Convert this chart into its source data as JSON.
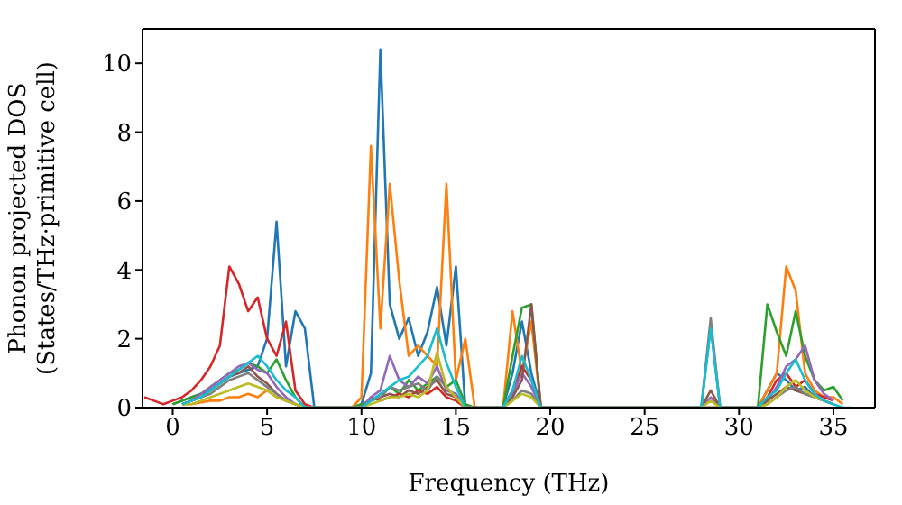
{
  "chart_data": {
    "type": "line",
    "xlabel": "Frequency (THz)",
    "ylabel": "Phonon projected DOS\n(States/THz·primitive cell)",
    "xlim": [
      -1.6,
      37.2
    ],
    "ylim": [
      0,
      11
    ],
    "xticks": [
      0,
      5,
      10,
      15,
      20,
      25,
      30,
      35
    ],
    "yticks": [
      0,
      2,
      4,
      6,
      8,
      10
    ],
    "grid": false,
    "legend": false,
    "marker": "none",
    "line_style": "solid",
    "x": [
      -1.5,
      -1,
      -0.5,
      0,
      0.5,
      1,
      1.5,
      2,
      2.5,
      3,
      3.5,
      4,
      4.5,
      5,
      5.5,
      6,
      6.5,
      7,
      7.5,
      8,
      8.5,
      9,
      9.5,
      10,
      10.5,
      11,
      11.5,
      12,
      12.5,
      13,
      13.5,
      14,
      14.5,
      15,
      15.5,
      16,
      16.5,
      17,
      17.5,
      18,
      18.5,
      19,
      19.5,
      20,
      20.5,
      21,
      21.5,
      22,
      22.5,
      23,
      23.5,
      24,
      24.5,
      25,
      25.5,
      26,
      26.5,
      27,
      27.5,
      28,
      28.5,
      29,
      29.5,
      30,
      30.5,
      31,
      31.5,
      32,
      32.5,
      33,
      33.5,
      34,
      34.5,
      35,
      35.5,
      36
    ],
    "series": [
      {
        "color": "#1f77b4",
        "values": [
          null,
          null,
          null,
          0.1,
          0.2,
          0.3,
          0.4,
          0.5,
          0.7,
          0.9,
          1.0,
          1.1,
          1.2,
          2.0,
          5.4,
          1.2,
          2.8,
          2.3,
          0,
          0,
          0,
          0,
          0,
          0.1,
          1.0,
          10.4,
          3.0,
          2.0,
          2.6,
          1.5,
          2.2,
          3.5,
          1.8,
          4.1,
          0,
          0,
          0,
          0,
          0,
          1.0,
          2.5,
          1.0,
          0,
          0,
          0,
          0,
          0,
          0,
          0,
          0,
          0,
          0,
          0,
          0,
          0,
          0,
          0,
          0,
          0,
          0,
          2.4,
          0,
          0,
          0,
          0,
          0,
          0.5,
          1.0,
          0.8,
          0.5,
          0.6,
          0.3,
          0.2,
          0.1,
          null,
          null
        ]
      },
      {
        "color": "#ff7f0e",
        "values": [
          null,
          null,
          null,
          null,
          0.1,
          0.1,
          0.15,
          0.2,
          0.2,
          0.3,
          0.3,
          0.4,
          0.3,
          0.5,
          0.3,
          0.2,
          0.1,
          0,
          0,
          0,
          0,
          0,
          0,
          0.3,
          7.6,
          2.3,
          6.5,
          3.7,
          1.5,
          1.8,
          1.5,
          1.2,
          6.5,
          0.8,
          2.0,
          0,
          0,
          0,
          0,
          2.8,
          1.0,
          2.5,
          0,
          0,
          0,
          0,
          0,
          0,
          0,
          0,
          0,
          0,
          0,
          0,
          0,
          0,
          0,
          0,
          0,
          0,
          0,
          0,
          0,
          0,
          0,
          0,
          0.5,
          1.0,
          4.1,
          3.4,
          1.0,
          0.5,
          0.3,
          0.3,
          0.1,
          null
        ]
      },
      {
        "color": "#2ca02c",
        "values": [
          null,
          null,
          null,
          0.1,
          0.2,
          0.3,
          0.4,
          0.6,
          0.8,
          1.0,
          1.1,
          1.3,
          1.2,
          1.0,
          1.4,
          0.8,
          0.3,
          0,
          0,
          0,
          0,
          0,
          0,
          0.1,
          0.2,
          0.3,
          0.6,
          0.4,
          0.8,
          0.5,
          0.7,
          0.9,
          0.6,
          0.8,
          0.1,
          0,
          0,
          0,
          0,
          1.5,
          2.9,
          3.0,
          0,
          0,
          0,
          0,
          0,
          0,
          0,
          0,
          0,
          0,
          0,
          0,
          0,
          0,
          0,
          0,
          0,
          0,
          0,
          0,
          0,
          0,
          0,
          0,
          3.0,
          2.2,
          1.5,
          2.8,
          1.5,
          0.8,
          0.5,
          0.6,
          0.2,
          null
        ]
      },
      {
        "color": "#d62728",
        "values": [
          0.3,
          0.2,
          0.1,
          0.2,
          0.3,
          0.5,
          0.8,
          1.2,
          1.8,
          4.1,
          3.6,
          2.8,
          3.2,
          2.0,
          1.5,
          2.5,
          0.5,
          0.1,
          0,
          0,
          0,
          0,
          0,
          0,
          0.3,
          0.2,
          0.3,
          0.4,
          0.3,
          0.5,
          0.4,
          0.6,
          0.3,
          0.2,
          0,
          0,
          0,
          0,
          0,
          0.5,
          1.2,
          0.8,
          0,
          0,
          0,
          0,
          0,
          0,
          0,
          0,
          0,
          0,
          0,
          0,
          0,
          0,
          0,
          0,
          0,
          0,
          0,
          0,
          0,
          0,
          0,
          0,
          0.3,
          0.8,
          1.0,
          0.6,
          0.8,
          0.4,
          0.3,
          0.2,
          null,
          null
        ]
      },
      {
        "color": "#9467bd",
        "values": [
          null,
          null,
          null,
          null,
          0.1,
          0.2,
          0.4,
          0.6,
          0.8,
          1.0,
          1.2,
          1.3,
          1.1,
          1.0,
          0.6,
          0.3,
          0.1,
          0,
          0,
          0,
          0,
          0,
          0,
          0,
          0.3,
          0.5,
          1.5,
          0.8,
          0.6,
          0.9,
          0.7,
          1.2,
          0.5,
          0.4,
          0,
          0,
          0,
          0,
          0,
          0.4,
          1.0,
          0.6,
          0,
          0,
          0,
          0,
          0,
          0,
          0,
          0,
          0,
          0,
          0,
          0,
          0,
          0,
          0,
          0,
          0,
          0,
          0.3,
          0,
          0,
          0,
          0,
          0,
          0.2,
          0.6,
          1.2,
          1.4,
          1.8,
          0.8,
          0.4,
          0.2,
          null,
          null
        ]
      },
      {
        "color": "#8c564b",
        "values": [
          null,
          null,
          null,
          null,
          0.1,
          0.2,
          0.3,
          0.5,
          0.7,
          0.9,
          1.0,
          1.2,
          0.9,
          0.7,
          0.4,
          0.2,
          0.1,
          0,
          0,
          0,
          0,
          0,
          0,
          0,
          0.2,
          0.3,
          0.4,
          0.3,
          0.5,
          0.4,
          0.6,
          0.8,
          0.4,
          0.3,
          0,
          0,
          0,
          0,
          0,
          0.3,
          0.8,
          3.0,
          0,
          0,
          0,
          0,
          0,
          0,
          0,
          0,
          0,
          0,
          0,
          0,
          0,
          0,
          0,
          0,
          0,
          0,
          0.5,
          0,
          0,
          0,
          0,
          0,
          0.2,
          0.4,
          0.6,
          0.5,
          0.4,
          0.3,
          0.2,
          0.1,
          null,
          null
        ]
      },
      {
        "color": "#7f7f7f",
        "values": [
          null,
          null,
          null,
          null,
          0.1,
          0.2,
          0.3,
          0.4,
          0.6,
          0.8,
          0.9,
          1.0,
          0.8,
          0.6,
          0.4,
          0.2,
          0.1,
          0,
          0,
          0,
          0,
          0,
          0,
          0,
          0.2,
          0.3,
          0.6,
          0.5,
          0.6,
          0.7,
          0.5,
          0.9,
          0.6,
          0.3,
          0,
          0,
          0,
          0,
          0,
          0.2,
          0.5,
          0.4,
          0,
          0,
          0,
          0,
          0,
          0,
          0,
          0,
          0,
          0,
          0,
          0,
          0,
          0,
          0,
          0,
          0,
          0,
          2.6,
          0,
          0,
          0,
          0,
          0,
          0.1,
          0.3,
          0.5,
          0.6,
          0.4,
          0.3,
          0.2,
          0.1,
          null,
          null
        ]
      },
      {
        "color": "#bcbd22",
        "values": [
          null,
          null,
          null,
          null,
          0.1,
          0.1,
          0.2,
          0.3,
          0.4,
          0.5,
          0.6,
          0.7,
          0.6,
          0.5,
          0.3,
          0.2,
          0.1,
          0,
          0,
          0,
          0,
          0,
          0,
          0,
          0.1,
          0.2,
          0.3,
          0.3,
          0.4,
          0.3,
          0.5,
          1.6,
          0.6,
          0.3,
          0,
          0,
          0,
          0,
          0,
          0.2,
          0.4,
          0.3,
          0,
          0,
          0,
          0,
          0,
          0,
          0,
          0,
          0,
          0,
          0,
          0,
          0,
          0,
          0,
          0,
          0,
          0,
          0.2,
          0,
          0,
          0,
          0,
          0,
          0.1,
          0.3,
          0.6,
          0.8,
          0.5,
          0.3,
          0.2,
          0.1,
          null,
          null
        ]
      },
      {
        "color": "#17becf",
        "values": [
          null,
          null,
          null,
          null,
          0.1,
          0.2,
          0.3,
          0.5,
          0.7,
          0.9,
          1.1,
          1.3,
          1.5,
          1.2,
          0.8,
          0.5,
          0.3,
          0,
          0,
          0,
          0,
          0,
          0,
          0,
          0.2,
          0.4,
          0.6,
          0.8,
          0.9,
          1.2,
          1.5,
          2.3,
          1.3,
          0.6,
          0,
          0,
          0,
          0,
          0,
          0.5,
          1.5,
          0.8,
          0,
          0,
          0,
          0,
          0,
          0,
          0,
          0,
          0,
          0,
          0,
          0,
          0,
          0,
          0,
          0,
          0,
          0,
          2.3,
          0,
          0,
          0,
          0,
          0,
          0.3,
          0.5,
          1.0,
          1.4,
          0.8,
          0.4,
          0.2,
          0.1,
          0,
          0
        ]
      }
    ]
  }
}
